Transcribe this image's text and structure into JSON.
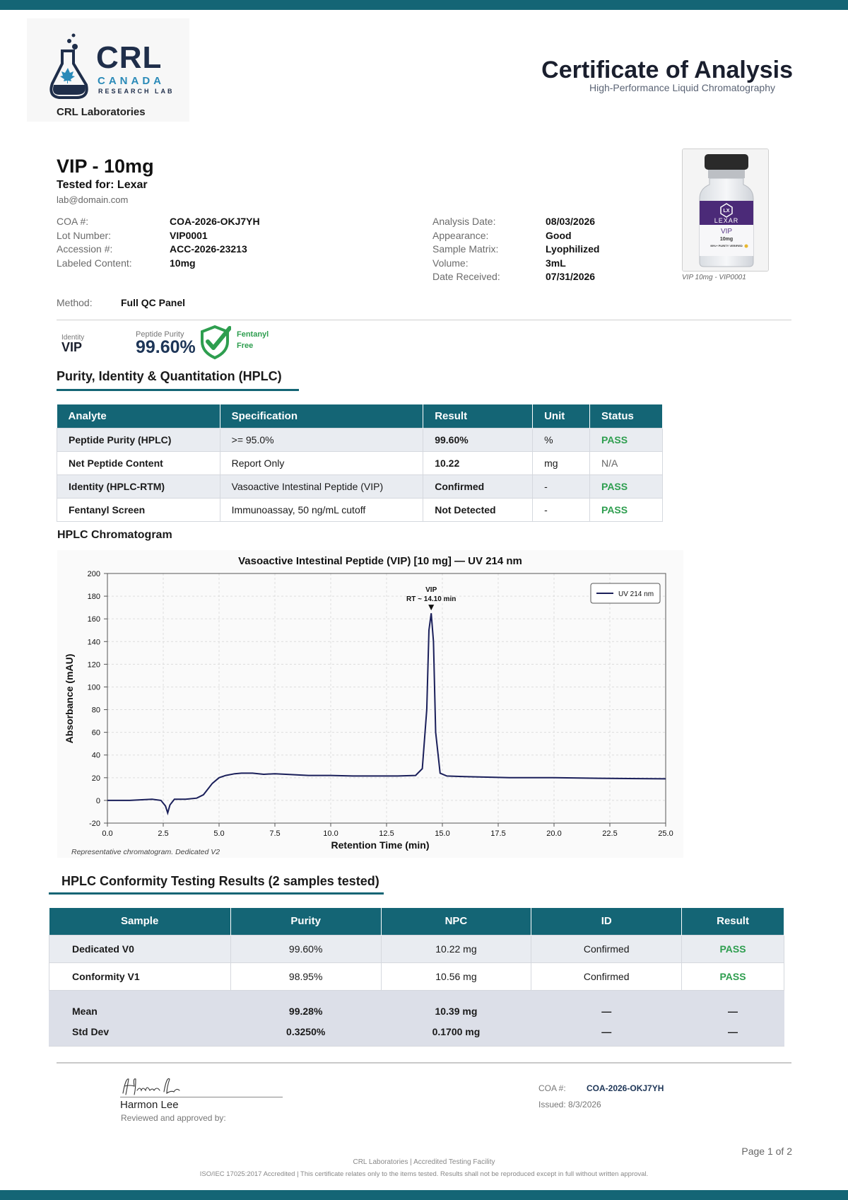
{
  "header": {
    "logo_main": "CRL",
    "logo_canada": "CANADA",
    "logo_research": "RESEARCH LAB",
    "lab_name": "CRL Laboratories",
    "title": "Certificate of Analysis",
    "subtitle": "High-Performance Liquid Chromatography"
  },
  "product": {
    "title": "VIP - 10mg",
    "tested_for": "Tested for: Lexar",
    "email": "lab@domain.com",
    "left_fields": [
      {
        "label": "COA #:",
        "value": "COA-2026-OKJ7YH"
      },
      {
        "label": "Lot Number:",
        "value": "VIP0001"
      },
      {
        "label": "Accession #:",
        "value": "ACC-2026-23213"
      },
      {
        "label": "Labeled Content:",
        "value": "10mg"
      }
    ],
    "right_fields": [
      {
        "label": "Analysis Date:",
        "value": "08/03/2026"
      },
      {
        "label": "Appearance:",
        "value": "Good"
      },
      {
        "label": "Sample Matrix:",
        "value": "Lyophilized"
      },
      {
        "label": "Volume:",
        "value": "3mL"
      },
      {
        "label": "Date Received:",
        "value": "07/31/2026"
      }
    ],
    "vial": {
      "brand": "LEXAR",
      "logo": "LX",
      "name": "VIP",
      "dose": "10mg",
      "badge": "99%+ PURITY VERIFIED",
      "caption": "VIP 10mg - VIP0001"
    },
    "method_label": "Method:",
    "method_value": "Full QC Panel"
  },
  "summary": {
    "identity_label": "Identity",
    "identity_value": "VIP",
    "purity_label": "Peptide Purity",
    "purity_value": "99.60%",
    "fentanyl_line1": "Fentanyl",
    "fentanyl_line2": "Free",
    "check_color": "#2e9e4f"
  },
  "hplc_table": {
    "title": "Purity, Identity & Quantitation (HPLC)",
    "headers": [
      "Analyte",
      "Specification",
      "Result",
      "Unit",
      "Status"
    ],
    "rows": [
      {
        "analyte": "Peptide Purity (HPLC)",
        "spec": ">= 95.0%",
        "result": "99.60%",
        "unit": "%",
        "status": "PASS"
      },
      {
        "analyte": "Net Peptide Content",
        "spec": "Report Only",
        "result": "10.22",
        "unit": "mg",
        "status": "N/A"
      },
      {
        "analyte": "Identity (HPLC-RTM)",
        "spec": "Vasoactive Intestinal Peptide (VIP)",
        "result": "Confirmed",
        "unit": "-",
        "status": "PASS"
      },
      {
        "analyte": "Fentanyl Screen",
        "spec": "Immunoassay, 50 ng/mL cutoff",
        "result": "Not Detected",
        "unit": "-",
        "status": "PASS"
      }
    ]
  },
  "chromatogram_heading": "HPLC Chromatogram",
  "chart_data": {
    "type": "line",
    "title": "Vasoactive Intestinal Peptide (VIP) [10 mg] — UV 214 nm",
    "xlabel": "Retention Time (min)",
    "ylabel": "Absorbance (mAU)",
    "xlim": [
      0,
      25
    ],
    "ylim": [
      -20,
      200
    ],
    "xticks": [
      "0.0",
      "2.5",
      "5.0",
      "7.5",
      "10.0",
      "12.5",
      "15.0",
      "17.5",
      "20.0",
      "22.5",
      "25.0"
    ],
    "yticks": [
      "-20",
      "0",
      "20",
      "40",
      "60",
      "80",
      "100",
      "120",
      "140",
      "160",
      "180",
      "200"
    ],
    "grid": true,
    "legend_position": "top-right",
    "series": [
      {
        "name": "UV 214 nm",
        "color": "#1a1f5a",
        "x": [
          0,
          1,
          2,
          2.4,
          2.6,
          2.7,
          2.8,
          3.0,
          3.5,
          4.0,
          4.3,
          4.7,
          5.0,
          5.3,
          5.7,
          6.0,
          6.5,
          7.0,
          7.5,
          8.0,
          9.0,
          10.0,
          11.0,
          12.0,
          13.0,
          13.8,
          14.1,
          14.3,
          14.4,
          14.5,
          14.6,
          14.7,
          14.9,
          15.2,
          16.0,
          17.0,
          18.0,
          20.0,
          22.0,
          25.0
        ],
        "y": [
          0,
          0,
          1,
          0,
          -5,
          -11,
          -4,
          1,
          1,
          2,
          5,
          15,
          20,
          22,
          23.5,
          24,
          24,
          23,
          23.5,
          23,
          22,
          22,
          21.5,
          21.5,
          21.5,
          22,
          28,
          80,
          150,
          165,
          140,
          60,
          24,
          21.5,
          21,
          20.5,
          20,
          20,
          19.5,
          19
        ]
      }
    ],
    "annotations": [
      {
        "text": "VIP",
        "x": 14.5,
        "y": 165
      },
      {
        "text": "RT ~ 14.10 min",
        "x": 14.5,
        "y": 165
      }
    ],
    "footnote": "Representative chromatogram. Dedicated V2"
  },
  "conformity": {
    "title": "HPLC Conformity Testing Results (2 samples tested)",
    "headers": [
      "Sample",
      "Purity",
      "NPC",
      "ID",
      "Result"
    ],
    "rows": [
      {
        "sample": "Dedicated V0",
        "purity": "99.60%",
        "npc": "10.22 mg",
        "id": "Confirmed",
        "result": "PASS"
      },
      {
        "sample": "Conformity V1",
        "purity": "98.95%",
        "npc": "10.56 mg",
        "id": "Confirmed",
        "result": "PASS"
      }
    ],
    "mean": {
      "label": "Mean",
      "purity": "99.28%",
      "npc": "10.39 mg",
      "id": "—",
      "result": "—"
    },
    "std": {
      "label": "Std Dev",
      "purity": "0.3250%",
      "npc": "0.1700 mg",
      "id": "—",
      "result": "—"
    }
  },
  "footer": {
    "signature_name": "Harmon Lee",
    "signature_script": "Harmon Lee",
    "reviewed": "Reviewed and approved by:",
    "coa_label": "COA #:",
    "coa_value": "COA-2026-OKJ7YH",
    "issued": "Issued: 8/3/2026",
    "page": "Page 1 of 2",
    "line1": "CRL Laboratories | Accredited Testing Facility",
    "line2": "ISO/IEC 17025:2017 Accredited | This certificate relates only to the items tested. Results shall not be reproduced except in full without written approval."
  },
  "colors": {
    "brand": "#146575",
    "pass": "#2e9e4f",
    "navy": "#1d3557"
  }
}
